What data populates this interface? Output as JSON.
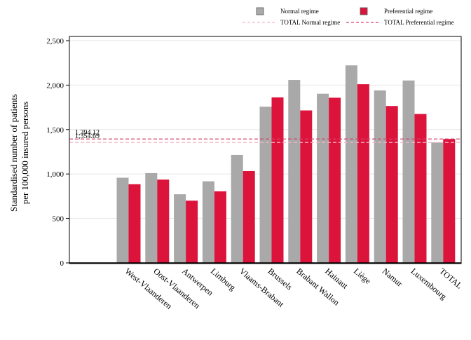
{
  "chart_data": {
    "type": "bar",
    "title": "",
    "xlabel": "",
    "ylabel": "Standardised number of patients per 100,000 insured persons",
    "ylabel_lines": [
      "Standardised number of patients",
      "per 100,000 insured persons"
    ],
    "ylim": [
      0,
      2500
    ],
    "yticks": [
      0,
      500,
      1000,
      1500,
      2000,
      2500
    ],
    "ytick_labels": [
      "0",
      "500",
      "1,000",
      "1,500",
      "2,000",
      "2,500"
    ],
    "grid": true,
    "legend_position": "top-right",
    "categories": [
      "West-Vlaanderen",
      "Oost-Vlaanderen",
      "Antwerpen",
      "Limburg",
      "Vlaams-Brabant",
      "Brussels",
      "Brabant Wallon",
      "Hainaut",
      "Liège",
      "Namur",
      "Luxembourg",
      "TOTAL"
    ],
    "series": [
      {
        "name": "Normal regime",
        "color": "#a9a9a9",
        "values": [
          958,
          1010,
          772,
          918,
          1215,
          1757,
          2058,
          1903,
          2222,
          1940,
          2052,
          1355
        ]
      },
      {
        "name": "Preferential regime",
        "color": "#dc143c",
        "values": [
          885,
          937,
          700,
          805,
          1033,
          1862,
          1715,
          1858,
          2010,
          1765,
          1675,
          1394
        ]
      }
    ],
    "reference_lines": [
      {
        "name": "TOTAL Normal regime",
        "value": 1354.69,
        "label": "1,354.69",
        "color": "#f2b6c6",
        "style": "dashed"
      },
      {
        "name": "TOTAL Preferential regime",
        "value": 1394.12,
        "label": "1,394.12",
        "color": "#d8406a",
        "style": "dashed"
      }
    ]
  }
}
